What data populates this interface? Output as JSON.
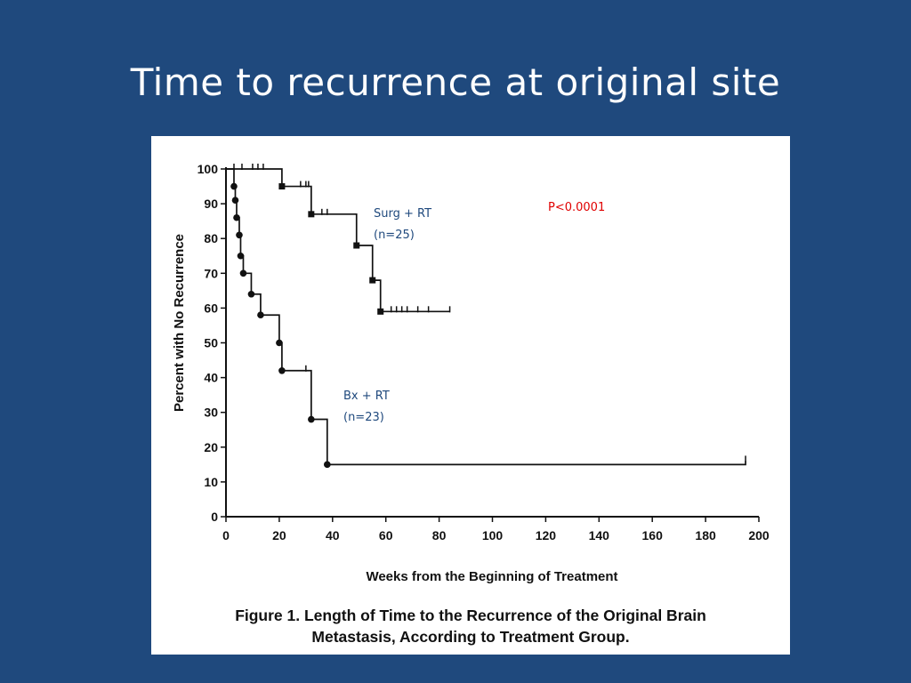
{
  "slide": {
    "title": "Time to recurrence at original site"
  },
  "figure": {
    "caption_line1": "Figure 1. Length of Time to the Recurrence of the Original Brain",
    "caption_line2": "Metastasis, According to Treatment Group."
  },
  "chart_data": {
    "type": "line",
    "step": true,
    "xlabel": "Weeks from the Beginning of Treatment",
    "ylabel": "Percent with No Recurrence",
    "xlim": [
      0,
      200
    ],
    "ylim": [
      0,
      100
    ],
    "xticks": [
      0,
      20,
      40,
      60,
      80,
      100,
      120,
      140,
      160,
      180,
      200
    ],
    "yticks": [
      0,
      10,
      20,
      30,
      40,
      50,
      60,
      70,
      80,
      90,
      100
    ],
    "grid": false,
    "p_value": "P<0.0001",
    "series": [
      {
        "name": "Surg + RT",
        "n_label": "(n=25)",
        "marker": "square",
        "steps": [
          [
            0,
            100
          ],
          [
            21,
            95
          ],
          [
            32,
            87
          ],
          [
            49,
            78
          ],
          [
            55,
            68
          ],
          [
            58,
            59
          ],
          [
            84,
            59
          ]
        ],
        "censored": [
          [
            3,
            100
          ],
          [
            6,
            100
          ],
          [
            10,
            100
          ],
          [
            12,
            100
          ],
          [
            14,
            100
          ],
          [
            28,
            95
          ],
          [
            30,
            95
          ],
          [
            31,
            95
          ],
          [
            36,
            87
          ],
          [
            38,
            87
          ],
          [
            62,
            59
          ],
          [
            64,
            59
          ],
          [
            66,
            59
          ],
          [
            68,
            59
          ],
          [
            72,
            59
          ],
          [
            76,
            59
          ],
          [
            84,
            59
          ]
        ]
      },
      {
        "name": "Bx + RT",
        "n_label": "(n=23)",
        "marker": "circle",
        "steps": [
          [
            0,
            100
          ],
          [
            3,
            95
          ],
          [
            3.5,
            91
          ],
          [
            4,
            86
          ],
          [
            5,
            81
          ],
          [
            5.5,
            75
          ],
          [
            6.5,
            70
          ],
          [
            9.5,
            64
          ],
          [
            13,
            58
          ],
          [
            20,
            50
          ],
          [
            21,
            42
          ],
          [
            32,
            28
          ],
          [
            38,
            15
          ],
          [
            195,
            16
          ]
        ],
        "censored": [
          [
            30,
            42
          ],
          [
            195,
            16
          ]
        ]
      }
    ]
  }
}
